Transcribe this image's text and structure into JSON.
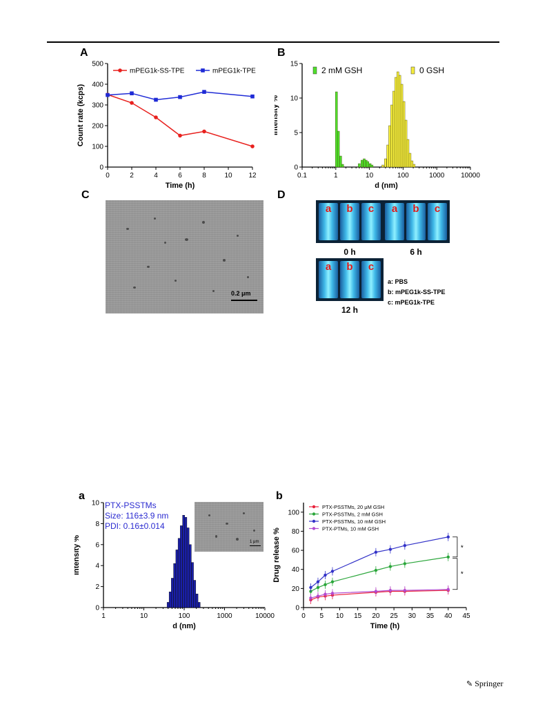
{
  "panel_labels": {
    "A": "A",
    "B": "B",
    "C": "C",
    "D": "D",
    "a": "a",
    "b": "b"
  },
  "scale_bar": "0.2 μm",
  "scale_bar_small": "1 μm",
  "vials": {
    "letters": [
      "a",
      "b",
      "c"
    ],
    "times": [
      "0 h",
      "6 h",
      "12 h"
    ],
    "legend": [
      "a: PBS",
      "b: mPEG1k-SS-TPE",
      "c: mPEG1k-TPE"
    ]
  },
  "inset_text": [
    "PTX-PSSTMs",
    "Size: 116±3.9 nm",
    "PDI: 0.16±0.014"
  ],
  "significance": [
    "*",
    "*"
  ],
  "footer": "Springer",
  "chart_data": [
    {
      "type": "line",
      "panel": "A",
      "xlabel": "Time (h)",
      "ylabel": "Count rate (kcps)",
      "xlim": [
        0,
        12
      ],
      "ylim": [
        0,
        500
      ],
      "xticks": [
        0,
        2,
        4,
        6,
        8,
        10,
        12
      ],
      "yticks": [
        0,
        100,
        200,
        300,
        400,
        500
      ],
      "series": [
        {
          "name": "mPEG1k-SS-TPE",
          "color": "#e8211e",
          "marker": "circle",
          "x": [
            0,
            2,
            4,
            6,
            8,
            12
          ],
          "values": [
            350,
            310,
            240,
            152,
            172,
            100
          ]
        },
        {
          "name": "mPEG1k-TPE",
          "color": "#1f2bd6",
          "marker": "square",
          "x": [
            0,
            2,
            4,
            6,
            8,
            12
          ],
          "values": [
            348,
            356,
            325,
            338,
            363,
            341
          ]
        }
      ]
    },
    {
      "type": "bar",
      "panel": "B",
      "xlabel": "d (nm)",
      "ylabel": "Intensity %",
      "xscale": "log",
      "xlim": [
        0.1,
        10000
      ],
      "ylim": [
        0,
        15
      ],
      "xticks": [
        "0.1",
        "1",
        "10",
        "100",
        "1000",
        "10000"
      ],
      "yticks": [
        0,
        5,
        10,
        15
      ],
      "series": [
        {
          "name": "2 mM GSH",
          "color": "#4fe02a",
          "x": [
            1.05,
            1.2,
            1.4,
            1.6,
            5,
            6,
            7,
            8,
            9,
            10.5,
            12
          ],
          "values": [
            10.9,
            5.2,
            1.6,
            0.4,
            0.5,
            1.0,
            1.2,
            1.0,
            0.8,
            0.5,
            0.3
          ]
        },
        {
          "name": "0 GSH",
          "color": "#f5ec3c",
          "x": [
            25,
            30,
            35,
            40,
            46,
            53,
            61,
            70,
            80,
            92,
            106,
            122,
            140,
            161,
            185,
            213
          ],
          "values": [
            0.3,
            1.2,
            3.2,
            6.0,
            9.0,
            11.0,
            13.0,
            13.8,
            13.3,
            12.0,
            9.5,
            6.8,
            4.0,
            2.0,
            0.9,
            0.4
          ]
        }
      ]
    },
    {
      "type": "bar",
      "panel": "a",
      "xlabel": "d (nm)",
      "ylabel": "Intensity %",
      "xscale": "log",
      "xlim": [
        1,
        10000
      ],
      "ylim": [
        0,
        10
      ],
      "xticks": [
        "1",
        "10",
        "100",
        "1000",
        "10000"
      ],
      "yticks": [
        0,
        2,
        4,
        6,
        8,
        10
      ],
      "series": [
        {
          "name": "PTX-PSSTMs",
          "color": "#1a1fa8",
          "x": [
            40,
            45,
            51,
            58,
            66,
            75,
            85,
            97,
            110,
            125,
            142,
            161,
            183,
            208,
            236
          ],
          "values": [
            0.5,
            1.5,
            2.8,
            4.2,
            5.5,
            6.6,
            7.8,
            8.8,
            8.6,
            7.6,
            6.0,
            4.3,
            2.6,
            1.3,
            0.5
          ]
        }
      ]
    },
    {
      "type": "line",
      "panel": "b",
      "xlabel": "Time (h)",
      "ylabel": "Drug release %",
      "xlim": [
        0,
        45
      ],
      "ylim": [
        0,
        110
      ],
      "xticks": [
        0,
        5,
        10,
        15,
        20,
        25,
        30,
        35,
        40,
        45
      ],
      "yticks": [
        0,
        20,
        40,
        60,
        80,
        100
      ],
      "series": [
        {
          "name": "PTX-PSSTMs, 20 μM GSH",
          "color": "#e8223c",
          "x": [
            2,
            4,
            6,
            8,
            20,
            24,
            28,
            40
          ],
          "values": [
            8,
            11,
            12,
            13,
            16,
            17,
            17,
            18
          ]
        },
        {
          "name": "PTX-PSSTMs, 2 mM GSH",
          "color": "#2aa63a",
          "x": [
            2,
            4,
            6,
            8,
            20,
            24,
            28,
            40
          ],
          "values": [
            17,
            21,
            24,
            27,
            39,
            43,
            46,
            53
          ]
        },
        {
          "name": "PTX-PSSTMs, 10 mM GSH",
          "color": "#3232c8",
          "x": [
            2,
            4,
            6,
            8,
            20,
            24,
            28,
            40
          ],
          "values": [
            21,
            27,
            34,
            38,
            58,
            61,
            65,
            74
          ]
        },
        {
          "name": "PTX-PTMs, 10 mM GSH",
          "color": "#b24ad0",
          "x": [
            2,
            4,
            6,
            8,
            20,
            24,
            28,
            40
          ],
          "values": [
            10,
            12,
            14,
            15,
            17,
            18,
            18,
            19
          ]
        }
      ]
    }
  ]
}
